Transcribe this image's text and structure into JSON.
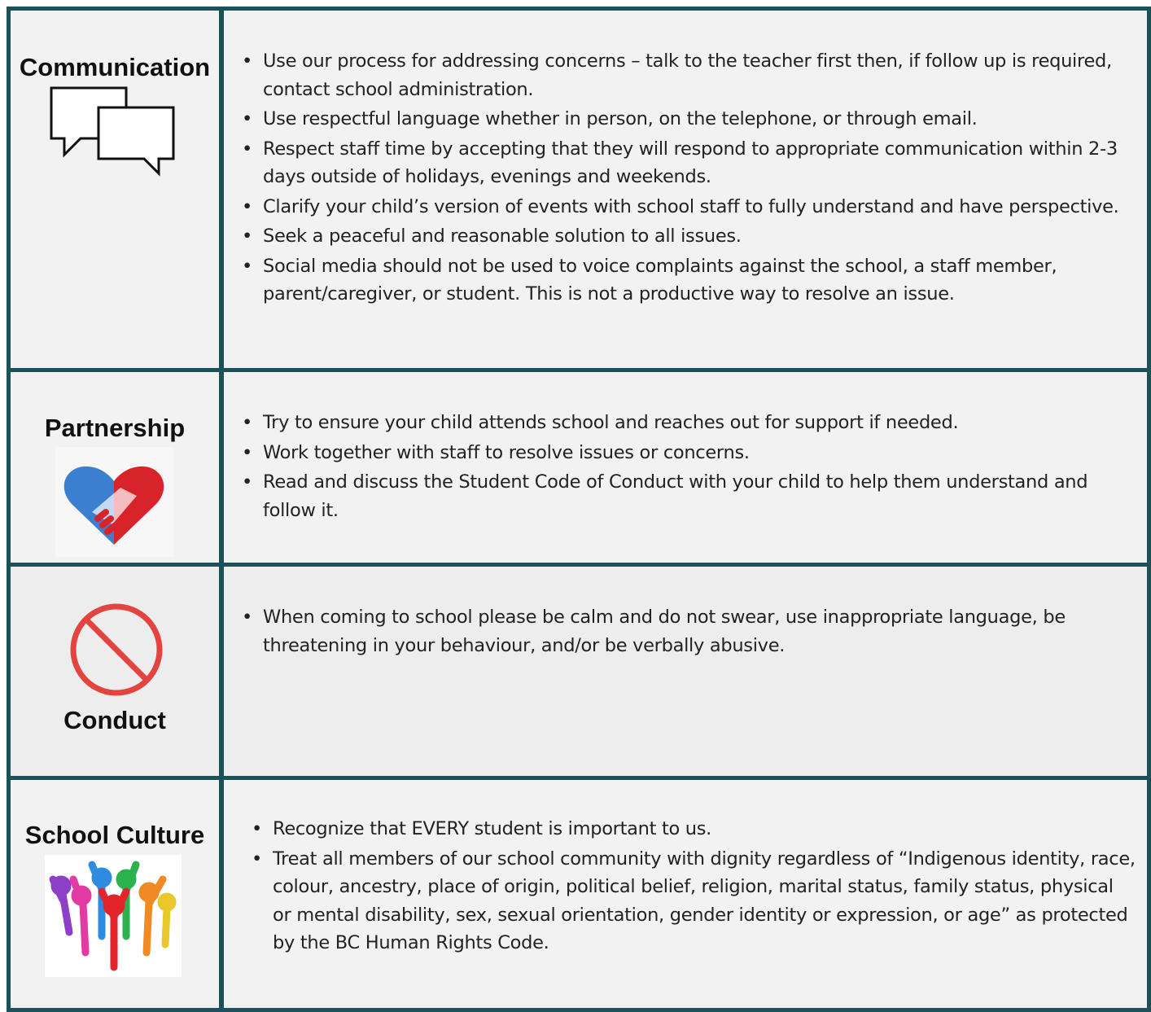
{
  "rows": [
    {
      "label": "Communication",
      "items": [
        "Use our process for addressing concerns – talk to the teacher first then, if follow up is required, contact school administration.",
        "Use respectful language whether in person, on the telephone, or through email.",
        "Respect staff time by accepting that they will respond to appropriate communication within 2-3 days outside of holidays, evenings and weekends.",
        "Clarify your child’s version of events with school staff to fully understand and have perspective.",
        "Seek a peaceful and reasonable solution to all issues.",
        "Social media should not be used to voice complaints against the school, a staff member, parent/caregiver, or student. This is not a productive way to resolve an issue."
      ]
    },
    {
      "label": "Partnership",
      "items": [
        "Try to ensure your child attends school and reaches out for support if needed.",
        "Work together with staff to resolve issues or concerns.",
        "Read and discuss the Student Code of Conduct with your child to help them understand and follow it."
      ]
    },
    {
      "label": "Conduct",
      "items": [
        "When coming to school please be calm and do not swear, use inappropriate language, be threatening in your behaviour, and/or be verbally abusive."
      ]
    },
    {
      "label": "School Culture",
      "items": [
        "Recognize that EVERY student is important to us.",
        "Treat all members of our school community with dignity regardless of “Indigenous identity, race, colour, ancestry, place of origin, political belief, religion, marital status, family status, physical or mental disability, sex, sexual orientation, gender identity or expression, or age” as protected by the BC Human Rights Code."
      ]
    }
  ]
}
